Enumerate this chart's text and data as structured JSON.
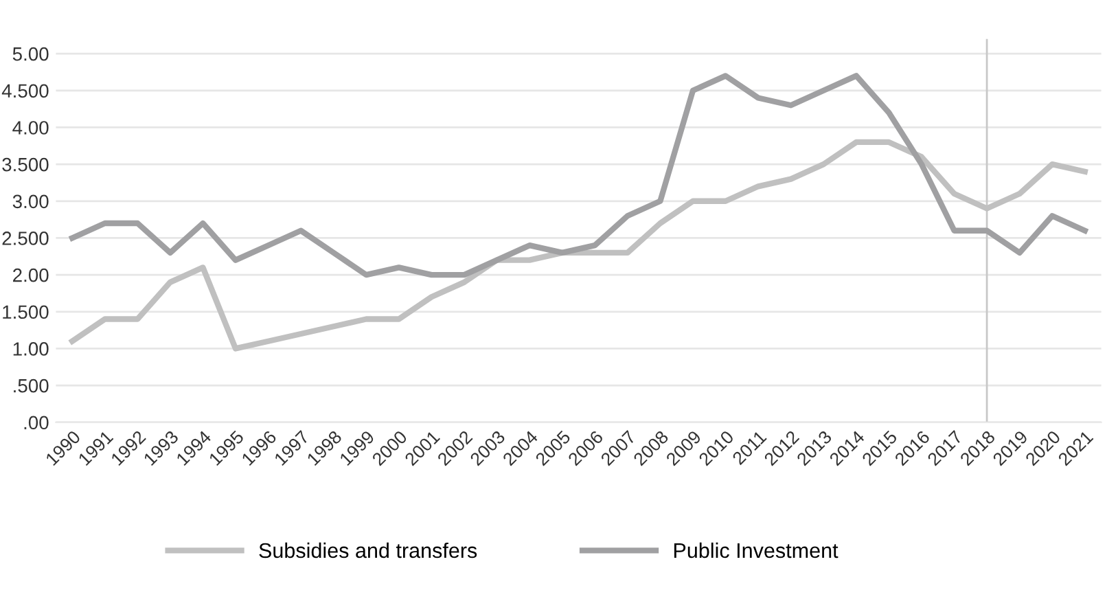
{
  "chart_data": {
    "type": "line",
    "categories": [
      "1990",
      "1991",
      "1992",
      "1993",
      "1994",
      "1995",
      "1996",
      "1997",
      "1998",
      "1999",
      "2000",
      "2001",
      "2002",
      "2003",
      "2004",
      "2005",
      "2006",
      "2007",
      "2008",
      "2009",
      "2010",
      "2011",
      "2012",
      "2013",
      "2014",
      "2015",
      "2016",
      "2017",
      "2018",
      "2019",
      "2020",
      "2021"
    ],
    "series": [
      {
        "name": "Subsidies and transfers",
        "color": "#c0c0c0",
        "values": [
          1.1,
          1.4,
          1.4,
          1.9,
          2.1,
          1.0,
          1.1,
          1.2,
          1.3,
          1.4,
          1.4,
          1.7,
          1.9,
          2.2,
          2.2,
          2.3,
          2.3,
          2.3,
          2.7,
          3.0,
          3.0,
          3.2,
          3.3,
          3.5,
          3.8,
          3.8,
          3.6,
          3.1,
          2.9,
          3.1,
          3.5,
          3.4
        ]
      },
      {
        "name": "Public Investment",
        "color": "#a0a0a2",
        "values": [
          2.5,
          2.7,
          2.7,
          2.3,
          2.7,
          2.2,
          2.4,
          2.6,
          2.3,
          2.0,
          2.1,
          2.0,
          2.0,
          2.2,
          2.4,
          2.3,
          2.4,
          2.8,
          3.0,
          4.5,
          4.7,
          4.4,
          4.3,
          4.5,
          4.7,
          4.2,
          3.5,
          2.6,
          2.6,
          2.3,
          2.8,
          2.6
        ]
      }
    ],
    "ylim": [
      0,
      5.2
    ],
    "yticks": [
      {
        "value": 0,
        "label": ".00"
      },
      {
        "value": 0.5,
        "label": ".500"
      },
      {
        "value": 1,
        "label": "1.00"
      },
      {
        "value": 1.5,
        "label": "1.500"
      },
      {
        "value": 2,
        "label": "2.00"
      },
      {
        "value": 2.5,
        "label": "2.500"
      },
      {
        "value": 3,
        "label": "3.00"
      },
      {
        "value": 3.5,
        "label": "3.500"
      },
      {
        "value": 4,
        "label": "4.00"
      },
      {
        "value": 4.5,
        "label": "4.500"
      },
      {
        "value": 5,
        "label": "5.00"
      }
    ],
    "ref_lines": [
      {
        "axis": "x",
        "value": "2018",
        "color": "#c8c8c8"
      }
    ],
    "grid": "y",
    "legend": "bottom",
    "marker": "none",
    "line_style": "solid"
  }
}
